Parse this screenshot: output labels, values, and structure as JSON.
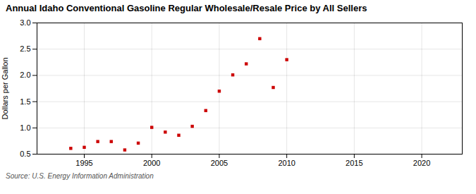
{
  "chart_data": {
    "type": "scatter",
    "title": "Annual Idaho Conventional Gasoline Regular Wholesale/Resale Price by All Sellers",
    "ylabel": "Dollars per Gallon",
    "annotations": [
      "Source: U.S. Energy Information Administration"
    ],
    "x": [
      1994,
      1995,
      1996,
      1997,
      1998,
      1999,
      2000,
      2001,
      2002,
      2003,
      2004,
      2005,
      2006,
      2007,
      2008,
      2009,
      2010
    ],
    "values": [
      0.61,
      0.63,
      0.74,
      0.74,
      0.58,
      0.71,
      1.01,
      0.92,
      0.86,
      1.03,
      1.33,
      1.7,
      2.01,
      2.22,
      2.7,
      1.77,
      2.3
    ],
    "color": "#cc0000",
    "marker": "square",
    "xlim": [
      1991.5,
      2023
    ],
    "xticks": [
      1995,
      2000,
      2005,
      2010,
      2015,
      2020
    ],
    "ylim": [
      0.5,
      3.0
    ],
    "yticks": [
      0.5,
      {
        "value": 1.0,
        "label": "1.0"
      },
      1.5,
      {
        "value": 2.0,
        "label": "2.0"
      },
      2.5,
      {
        "value": 3.0,
        "label": "3.0"
      }
    ],
    "grid": true
  }
}
